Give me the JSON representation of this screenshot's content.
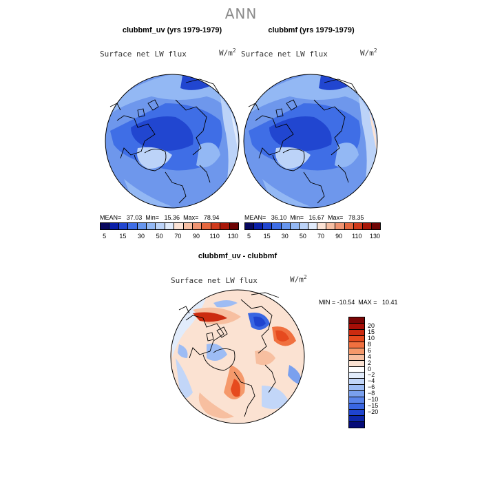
{
  "title": "ANN",
  "panels": [
    {
      "title": "clubbmf_uv (yrs 1979-1979)",
      "field": "Surface net LW flux",
      "units": "W/m",
      "units_sup": "2",
      "stats": "MEAN=   37.03  Min=   15.36  Max=   78.94"
    },
    {
      "title": "clubbmf (yrs 1979-1979)",
      "field": "Surface net LW flux",
      "units": "W/m",
      "units_sup": "2",
      "stats": "MEAN=   36.10  Min=   16.67  Max=   78.35"
    }
  ],
  "diff_panel": {
    "title": "clubbmf_uv - clubbmf",
    "field": "Surface net LW flux",
    "units": "W/m",
    "units_sup": "2",
    "stats": "MIN = -10.54  MAX =   10.41"
  },
  "colorbar_top": {
    "colors": [
      "#08085e",
      "#0a1fa8",
      "#2146d0",
      "#3f6ee6",
      "#6796ee",
      "#93b8f4",
      "#bcd3f8",
      "#e1ebfb",
      "#fbe3d6",
      "#f6bfa4",
      "#ef9472",
      "#e4673f",
      "#cf3a1c",
      "#a81708",
      "#6e0404"
    ],
    "labels": [
      "5",
      "15",
      "30",
      "50",
      "70",
      "90",
      "110",
      "130"
    ]
  },
  "colorbar_diff": {
    "colors_top_to_bottom": [
      "#7a0505",
      "#a80e07",
      "#cc2b10",
      "#e64a1e",
      "#f0703f",
      "#f5996b",
      "#f7bfa0",
      "#fbe2d2",
      "#ffffff",
      "#e2ecfb",
      "#c2d6f8",
      "#9dbcf4",
      "#7aa0ee",
      "#5a84ea",
      "#3966e2",
      "#1f44cf",
      "#0d27aa",
      "#050b78"
    ],
    "labels_top_to_bottom": [
      "20",
      "15",
      "10",
      "8",
      "6",
      "4",
      "2",
      "0",
      "−2",
      "−4",
      "−6",
      "−8",
      "−10",
      "−15",
      "−20"
    ]
  },
  "chart_data": {
    "type": "heatmap",
    "title": "ANN",
    "maps": [
      {
        "name": "clubbmf_uv (yrs 1979-1979)",
        "variable": "Surface net LW flux",
        "units": "W/m2",
        "mean": 37.03,
        "min": 15.36,
        "max": 78.94
      },
      {
        "name": "clubbmf (yrs 1979-1979)",
        "variable": "Surface net LW flux",
        "units": "W/m2",
        "mean": 36.1,
        "min": 16.67,
        "max": 78.35
      },
      {
        "name": "clubbmf_uv - clubbmf",
        "variable": "Surface net LW flux",
        "units": "W/m2",
        "min": -10.54,
        "max": 10.41
      }
    ],
    "colorbar_levels_top": [
      5,
      15,
      30,
      50,
      70,
      90,
      110,
      130
    ],
    "colorbar_levels_diff": [
      -20,
      -15,
      -10,
      -8,
      -6,
      -4,
      -2,
      0,
      2,
      4,
      6,
      8,
      10,
      15,
      20
    ]
  }
}
